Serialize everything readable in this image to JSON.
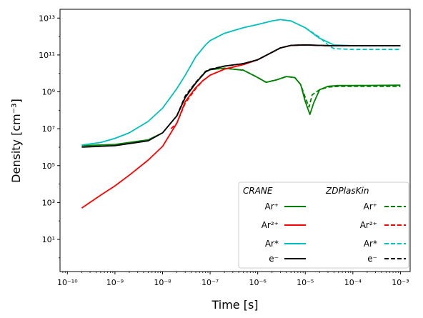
{
  "chart_data": {
    "type": "line",
    "xscale": "log",
    "yscale": "log",
    "xlim": [
      7e-11,
      0.0016
    ],
    "ylim": [
      0.18,
      30000000000000.0
    ],
    "xlabel": "Time [s]",
    "ylabel": "Density [cm⁻³]",
    "xticks": [
      {
        "value": 1e-10,
        "label": "10⁻¹⁰"
      },
      {
        "value": 1e-09,
        "label": "10⁻⁹"
      },
      {
        "value": 1e-08,
        "label": "10⁻⁸"
      },
      {
        "value": 1e-07,
        "label": "10⁻⁷"
      },
      {
        "value": 1e-06,
        "label": "10⁻⁶"
      },
      {
        "value": 1e-05,
        "label": "10⁻⁵"
      },
      {
        "value": 0.0001,
        "label": "10⁻⁴"
      },
      {
        "value": 0.001,
        "label": "10⁻³"
      }
    ],
    "yticks": [
      {
        "value": 10.0,
        "label": "10¹"
      },
      {
        "value": 1000.0,
        "label": "10³"
      },
      {
        "value": 100000.0,
        "label": "10⁵"
      },
      {
        "value": 10000000.0,
        "label": "10⁷"
      },
      {
        "value": 1000000000.0,
        "label": "10⁹"
      },
      {
        "value": 100000000000.0,
        "label": "10¹¹"
      },
      {
        "value": 10000000000000.0,
        "label": "10¹³"
      }
    ],
    "legend": {
      "placement": "lower-right",
      "groups": [
        {
          "title": "CRANE",
          "entries": [
            "Ar⁺",
            "Ar²⁺",
            "Ar*",
            "e⁻"
          ]
        },
        {
          "title": "ZDPlasKin",
          "entries": [
            "Ar⁺",
            "Ar²⁺",
            "Ar*",
            "e⁻"
          ]
        }
      ]
    },
    "series": [
      {
        "key": "crane-arplus",
        "color": "#008000",
        "dash": "solid",
        "points": [
          [
            2e-10,
            1200000.0
          ],
          [
            1e-09,
            1400000.0
          ],
          [
            5e-09,
            2500000.0
          ],
          [
            1e-08,
            6000000.0
          ],
          [
            2e-08,
            50000000.0
          ],
          [
            3e-08,
            500000000.0
          ],
          [
            5e-08,
            3000000000.0
          ],
          [
            8e-08,
            12000000000.0
          ],
          [
            1e-07,
            16000000000.0
          ],
          [
            2e-07,
            19000000000.0
          ],
          [
            5e-07,
            15000000000.0
          ],
          [
            1e-06,
            6000000000.0
          ],
          [
            1.5e-06,
            3300000000.0
          ],
          [
            2.5e-06,
            4500000000.0
          ],
          [
            4e-06,
            6800000000.0
          ],
          [
            6e-06,
            6000000000.0
          ],
          [
            8e-06,
            2500000000.0
          ],
          [
            1e-05,
            300000000.0
          ],
          [
            1.25e-05,
            60000000.0
          ],
          [
            1.5e-05,
            250000000.0
          ],
          [
            2e-05,
            1300000000.0
          ],
          [
            3e-05,
            2000000000.0
          ],
          [
            5e-05,
            2200000000.0
          ],
          [
            0.0001,
            2200000000.0
          ],
          [
            0.001,
            2300000000.0
          ]
        ]
      },
      {
        "key": "zdp-arplus",
        "color": "#008000",
        "dash": "dashed",
        "points": [
          [
            4e-08,
            1500000000.0
          ],
          [
            5e-08,
            3000000000.0
          ],
          [
            8e-08,
            13000000000.0
          ],
          [
            1e-07,
            17000000000.0
          ],
          [
            2e-07,
            19000000000.0
          ],
          [
            5e-07,
            15000000000.0
          ],
          [
            1e-06,
            6000000000.0
          ],
          [
            1.5e-06,
            3300000000.0
          ],
          [
            2.5e-06,
            4500000000.0
          ],
          [
            4e-06,
            6800000000.0
          ],
          [
            6e-06,
            6000000000.0
          ],
          [
            8e-06,
            2500000000.0
          ],
          [
            1e-05,
            500000000.0
          ],
          [
            1.2e-05,
            150000000.0
          ],
          [
            1.4e-05,
            700000000.0
          ],
          [
            2e-05,
            1300000000.0
          ],
          [
            3e-05,
            1800000000.0
          ],
          [
            5e-05,
            2000000000.0
          ],
          [
            0.0001,
            2000000000.0
          ],
          [
            0.001,
            2000000000.0
          ]
        ]
      },
      {
        "key": "crane-ar2plus",
        "color": "#ff0000",
        "dash": "solid",
        "points": [
          [
            2e-10,
            500
          ],
          [
            5e-10,
            2500
          ],
          [
            1e-09,
            8000
          ],
          [
            2e-09,
            30000.0
          ],
          [
            5e-09,
            200000.0
          ],
          [
            1e-08,
            1100000.0
          ],
          [
            2e-08,
            20000000.0
          ],
          [
            3e-08,
            300000000.0
          ],
          [
            5e-08,
            1700000000.0
          ],
          [
            7e-08,
            4000000000.0
          ],
          [
            1e-07,
            8000000000.0
          ],
          [
            2e-07,
            17000000000.0
          ],
          [
            5e-07,
            30000000000.0
          ],
          [
            1e-06,
            55000000000.0
          ],
          [
            2e-06,
            140000000000.0
          ],
          [
            3e-06,
            240000000000.0
          ],
          [
            5e-06,
            330000000000.0
          ],
          [
            1e-05,
            350000000000.0
          ],
          [
            3e-05,
            320000000000.0
          ],
          [
            0.0001,
            320000000000.0
          ],
          [
            0.001,
            320000000000.0
          ]
        ]
      },
      {
        "key": "zdp-ar2plus",
        "color": "#ff0000",
        "dash": "dashed",
        "points": [
          [
            1.5e-08,
            10000000.0
          ],
          [
            2e-08,
            20000000.0
          ],
          [
            3e-08,
            250000000.0
          ],
          [
            5e-08,
            1500000000.0
          ],
          [
            7e-08,
            4000000000.0
          ],
          [
            1e-07,
            8000000000.0
          ],
          [
            2e-07,
            17000000000.0
          ],
          [
            5e-07,
            30000000000.0
          ],
          [
            1e-06,
            55000000000.0
          ],
          [
            2e-06,
            140000000000.0
          ],
          [
            3e-06,
            240000000000.0
          ],
          [
            5e-06,
            330000000000.0
          ],
          [
            1e-05,
            350000000000.0
          ],
          [
            3e-05,
            320000000000.0
          ],
          [
            0.0001,
            320000000000.0
          ],
          [
            0.001,
            320000000000.0
          ]
        ]
      },
      {
        "key": "crane-arstar",
        "color": "#00bfbf",
        "dash": "solid",
        "points": [
          [
            2e-10,
            1300000.0
          ],
          [
            5e-10,
            1800000.0
          ],
          [
            1e-09,
            3000000.0
          ],
          [
            2e-09,
            6000000.0
          ],
          [
            5e-09,
            25000000.0
          ],
          [
            1e-08,
            130000000.0
          ],
          [
            2e-08,
            1500000000.0
          ],
          [
            3e-08,
            8000000000.0
          ],
          [
            5e-08,
            80000000000.0
          ],
          [
            8e-08,
            350000000000.0
          ],
          [
            1e-07,
            600000000000.0
          ],
          [
            2e-07,
            1500000000000.0
          ],
          [
            5e-07,
            3000000000000.0
          ],
          [
            1e-06,
            4500000000000.0
          ],
          [
            2e-06,
            7000000000000.0
          ],
          [
            3e-06,
            8300000000000.0
          ],
          [
            5e-06,
            7000000000000.0
          ],
          [
            1e-05,
            3000000000000.0
          ],
          [
            2e-05,
            800000000000.0
          ],
          [
            4e-05,
            350000000000.0
          ],
          [
            0.0001,
            320000000000.0
          ],
          [
            0.001,
            320000000000.0
          ]
        ]
      },
      {
        "key": "zdp-arstar",
        "color": "#00bfbf",
        "dash": "dashed",
        "points": [
          [
            1e-05,
            3000000000000.0
          ],
          [
            2e-05,
            900000000000.0
          ],
          [
            3e-05,
            350000000000.0
          ],
          [
            4e-05,
            220000000000.0
          ],
          [
            0.0001,
            200000000000.0
          ],
          [
            0.001,
            200000000000.0
          ]
        ]
      },
      {
        "key": "crane-electron",
        "color": "#000000",
        "dash": "solid",
        "points": [
          [
            2e-10,
            1000000.0
          ],
          [
            1e-09,
            1200000.0
          ],
          [
            5e-09,
            2200000.0
          ],
          [
            1e-08,
            6000000.0
          ],
          [
            2e-08,
            50000000.0
          ],
          [
            3e-08,
            500000000.0
          ],
          [
            5e-08,
            3000000000.0
          ],
          [
            8e-08,
            12000000000.0
          ],
          [
            1e-07,
            16000000000.0
          ],
          [
            2e-07,
            25000000000.0
          ],
          [
            5e-07,
            34000000000.0
          ],
          [
            1e-06,
            55000000000.0
          ],
          [
            2e-06,
            140000000000.0
          ],
          [
            3e-06,
            240000000000.0
          ],
          [
            5e-06,
            330000000000.0
          ],
          [
            1e-05,
            350000000000.0
          ],
          [
            3e-05,
            320000000000.0
          ],
          [
            0.0001,
            320000000000.0
          ],
          [
            0.001,
            320000000000.0
          ]
        ]
      },
      {
        "key": "zdp-electron",
        "color": "#000000",
        "dash": "dashed",
        "points": [
          [
            2e-08,
            50000000.0
          ],
          [
            3e-08,
            600000000.0
          ],
          [
            5e-08,
            3300000000.0
          ],
          [
            8e-08,
            12500000000.0
          ],
          [
            1e-07,
            17000000000.0
          ],
          [
            2e-07,
            25000000000.0
          ],
          [
            5e-07,
            34000000000.0
          ],
          [
            1e-06,
            55000000000.0
          ],
          [
            2e-06,
            140000000000.0
          ],
          [
            3e-06,
            240000000000.0
          ],
          [
            5e-06,
            330000000000.0
          ],
          [
            1e-05,
            350000000000.0
          ],
          [
            3e-05,
            320000000000.0
          ],
          [
            0.0001,
            320000000000.0
          ],
          [
            0.001,
            320000000000.0
          ]
        ]
      }
    ]
  }
}
